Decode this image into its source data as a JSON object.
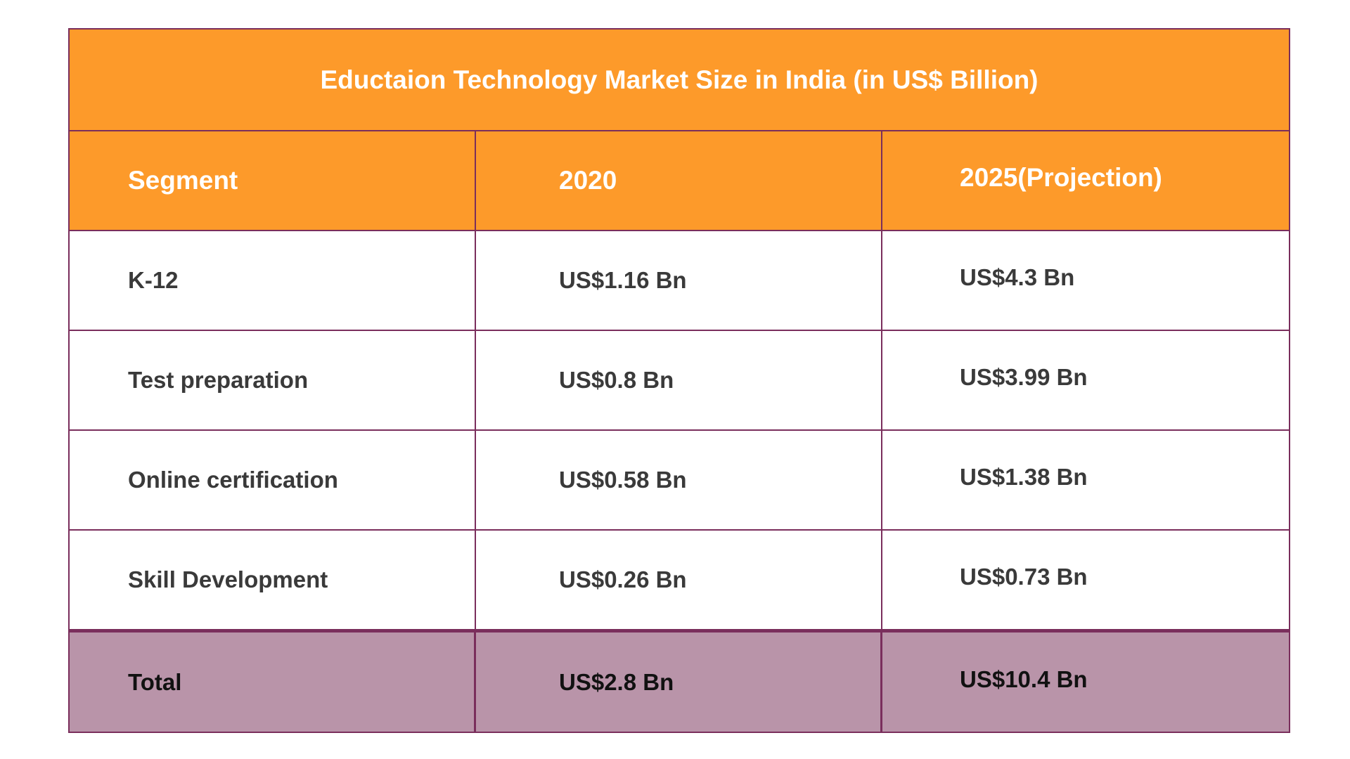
{
  "chart_data": {
    "type": "table",
    "title": "Eductaion Technology Market Size in India (in US$ Billion)",
    "columns": [
      "Segment",
      "2020",
      "2025(Projection)"
    ],
    "rows": [
      [
        "K-12",
        "US$1.16 Bn",
        "US$4.3 Bn"
      ],
      [
        "Test preparation",
        "US$0.8 Bn",
        "US$3.99 Bn"
      ],
      [
        "Online certification",
        "US$0.58 Bn",
        "US$1.38 Bn"
      ],
      [
        "Skill Development",
        "US$0.26 Bn",
        "US$0.73 Bn"
      ]
    ],
    "total": [
      "Total",
      "US$2.8 Bn",
      "US$10.4 Bn"
    ]
  },
  "colors": {
    "header_bg": "#fd9a2a",
    "border": "#7a2e5c",
    "total_bg": "#b994a9"
  }
}
